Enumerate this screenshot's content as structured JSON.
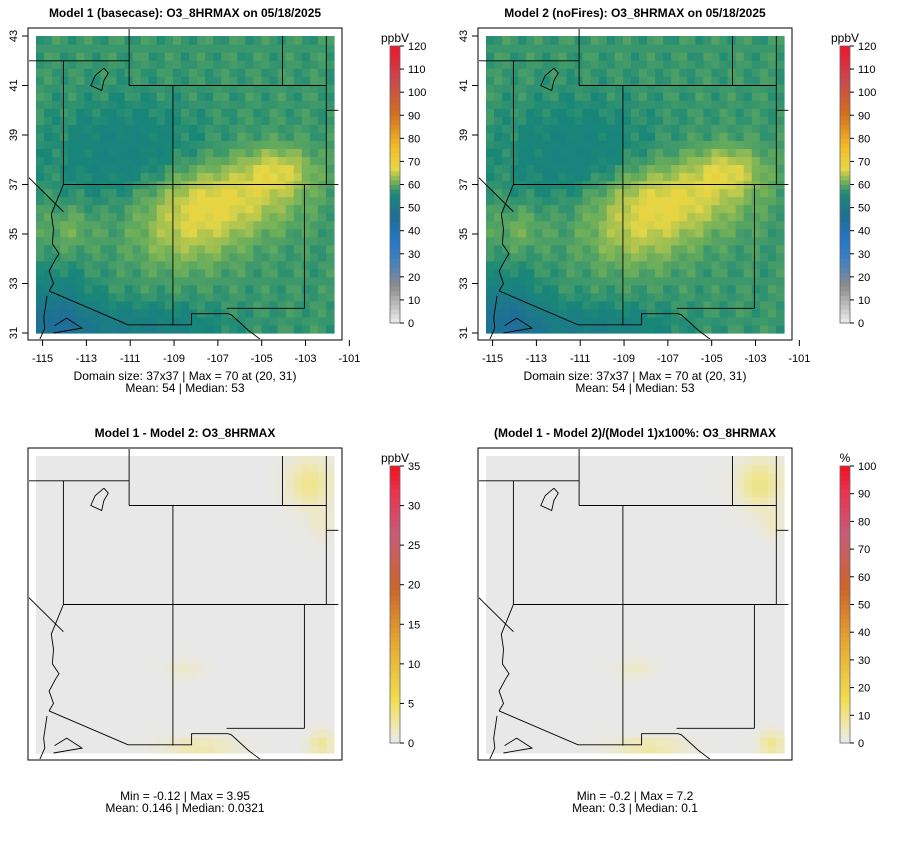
{
  "panels": [
    {
      "title": "Model 1 (basecase): O3_8HRMAX on 05/18/2025",
      "field": "ozone",
      "stats": [
        "Domain size: 37x37 | Max = 70 at (20, 31)",
        "Mean: 54 |  Median: 53"
      ],
      "show_axes": true,
      "colorbar": {
        "unit": "ppbV",
        "min": 0,
        "max": 120,
        "ticks": [
          0,
          10,
          20,
          30,
          40,
          50,
          60,
          70,
          80,
          90,
          100,
          110,
          120
        ],
        "palette": "viridis-like"
      }
    },
    {
      "title": "Model 2 (noFires): O3_8HRMAX on 05/18/2025",
      "field": "ozone",
      "stats": [
        "Domain size: 37x37 | Max = 70 at (20, 31)",
        "Mean: 54 |  Median: 53"
      ],
      "show_axes": true,
      "colorbar": {
        "unit": "ppbV",
        "min": 0,
        "max": 120,
        "ticks": [
          0,
          10,
          20,
          30,
          40,
          50,
          60,
          70,
          80,
          90,
          100,
          110,
          120
        ],
        "palette": "viridis-like"
      }
    },
    {
      "title": "Model 1 - Model 2: O3_8HRMAX",
      "field": "diff",
      "stats": [
        "Min = -0.12 | Max = 3.95",
        "Mean: 0.146 |  Median: 0.0321"
      ],
      "show_axes": false,
      "colorbar": {
        "unit": "ppbV",
        "min": 0,
        "max": 35,
        "ticks": [
          0,
          5,
          10,
          15,
          20,
          25,
          30,
          35
        ],
        "palette": "grey-yellow-red"
      }
    },
    {
      "title": "(Model 1 - Model 2)/(Model 1)x100%: O3_8HRMAX",
      "field": "pct",
      "stats": [
        "Min = -0.2 | Max = 7.2",
        "Mean: 0.3 |  Median: 0.1"
      ],
      "show_axes": false,
      "colorbar": {
        "unit": "%",
        "min": 0,
        "max": 100,
        "ticks": [
          0,
          10,
          20,
          30,
          40,
          50,
          60,
          70,
          80,
          90,
          100
        ],
        "palette": "grey-yellow-red"
      }
    }
  ],
  "chart_data": [
    {
      "type": "heatmap",
      "title": "Model 1 (basecase): O3_8HRMAX on 05/18/2025",
      "grid": "37x37",
      "xlim": [
        -115,
        -101
      ],
      "ylim": [
        31,
        43
      ],
      "x_ticks": [
        -115,
        -113,
        -111,
        -109,
        -107,
        -105,
        -103,
        -101
      ],
      "y_ticks": [
        31,
        33,
        35,
        37,
        39,
        41,
        43
      ],
      "colorbar_unit": "ppbV",
      "colorbar_range": [
        0,
        120
      ],
      "max": 70,
      "max_location": [
        20,
        31
      ],
      "mean": 54,
      "median": 53
    },
    {
      "type": "heatmap",
      "title": "Model 2 (noFires): O3_8HRMAX on 05/18/2025",
      "grid": "37x37",
      "xlim": [
        -115,
        -101
      ],
      "ylim": [
        31,
        43
      ],
      "x_ticks": [
        -115,
        -113,
        -111,
        -109,
        -107,
        -105,
        -103,
        -101
      ],
      "y_ticks": [
        31,
        33,
        35,
        37,
        39,
        41,
        43
      ],
      "colorbar_unit": "ppbV",
      "colorbar_range": [
        0,
        120
      ],
      "max": 70,
      "max_location": [
        20,
        31
      ],
      "mean": 54,
      "median": 53
    },
    {
      "type": "heatmap",
      "title": "Model 1 - Model 2: O3_8HRMAX",
      "colorbar_unit": "ppbV",
      "colorbar_range": [
        0,
        35
      ],
      "min": -0.12,
      "max": 3.95,
      "mean": 0.146,
      "median": 0.0321
    },
    {
      "type": "heatmap",
      "title": "(Model 1 - Model 2)/(Model 1)x100%: O3_8HRMAX",
      "colorbar_unit": "%",
      "colorbar_range": [
        0,
        100
      ],
      "min": -0.2,
      "max": 7.2,
      "mean": 0.3,
      "median": 0.1
    }
  ]
}
